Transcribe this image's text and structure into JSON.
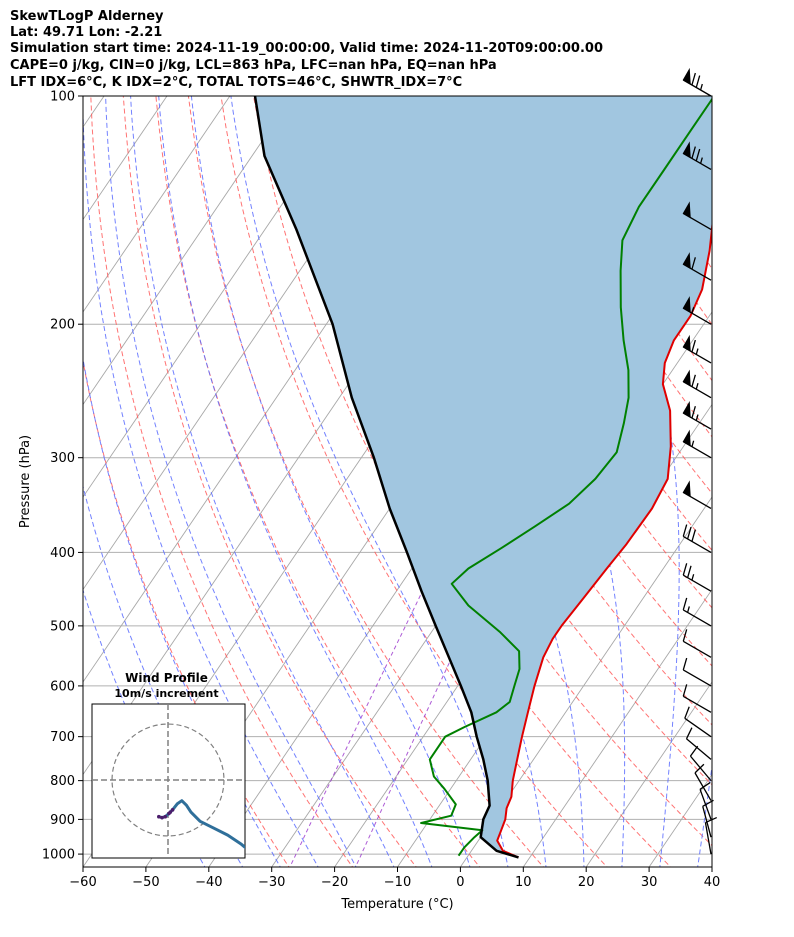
{
  "header": {
    "line1": "SkewTLogP Alderney",
    "line2": "Lat: 49.71   Lon: -2.21",
    "line3": "Simulation start time: 2024-11-19_00:00:00, Valid time: 2024-11-20T09:00:00.00",
    "line4": "CAPE=0 j/kg, CIN=0 j/kg, LCL=863 hPa, LFC=nan hPa, EQ=nan hPa",
    "line5": "LFT IDX=6°C, K IDX=2°C, TOTAL TOTS=46°C, SHWTR_IDX=7°C"
  },
  "chart_data": [
    {
      "type": "line",
      "kind": "skew-t log-p diagram",
      "xlabel": "Temperature (°C)",
      "ylabel": "Pressure (hPa)",
      "xlim": [
        -60,
        40
      ],
      "ylim": [
        1040,
        100
      ],
      "y_scale": "log",
      "x_ticks": [
        -60,
        -50,
        -40,
        -30,
        -20,
        -10,
        0,
        10,
        20,
        30,
        40
      ],
      "y_ticks": [
        100,
        200,
        300,
        400,
        500,
        600,
        700,
        800,
        900,
        1000
      ],
      "grid": true,
      "series": [
        {
          "role": "temperature",
          "color": "#e00000",
          "points": [
            [
              1010,
              8.2
            ],
            [
              990,
              5
            ],
            [
              960,
              3
            ],
            [
              930,
              2.5
            ],
            [
              900,
              2
            ],
            [
              870,
              1
            ],
            [
              840,
              0.5
            ],
            [
              800,
              -1
            ],
            [
              750,
              -2.6
            ],
            [
              700,
              -4.3
            ],
            [
              650,
              -6
            ],
            [
              600,
              -7.8
            ],
            [
              550,
              -9.5
            ],
            [
              520,
              -10
            ],
            [
              500,
              -10
            ],
            [
              460,
              -9.5
            ],
            [
              420,
              -9
            ],
            [
              390,
              -8.5
            ],
            [
              350,
              -8.3
            ],
            [
              320,
              -9
            ],
            [
              290,
              -12
            ],
            [
              260,
              -16
            ],
            [
              240,
              -20
            ],
            [
              225,
              -22
            ],
            [
              210,
              -23
            ],
            [
              195,
              -23
            ],
            [
              180,
              -24
            ],
            [
              160,
              -27
            ],
            [
              140,
              -31
            ],
            [
              125,
              -34
            ],
            [
              110,
              -37
            ],
            [
              100,
              -39
            ]
          ]
        },
        {
          "role": "dewpoint",
          "color": "#008000",
          "points": [
            [
              1005,
              -1.5
            ],
            [
              980,
              -1.5
            ],
            [
              950,
              -1
            ],
            [
              930,
              -0.5
            ],
            [
              910,
              -11
            ],
            [
              890,
              -7
            ],
            [
              860,
              -7.5
            ],
            [
              820,
              -11
            ],
            [
              790,
              -14
            ],
            [
              750,
              -16.5
            ],
            [
              700,
              -16.5
            ],
            [
              680,
              -14.5
            ],
            [
              650,
              -11
            ],
            [
              630,
              -10
            ],
            [
              600,
              -11
            ],
            [
              570,
              -12
            ],
            [
              540,
              -14
            ],
            [
              510,
              -19
            ],
            [
              470,
              -27
            ],
            [
              440,
              -32
            ],
            [
              420,
              -31
            ],
            [
              395,
              -28
            ],
            [
              370,
              -25
            ],
            [
              345,
              -22
            ],
            [
              320,
              -20.5
            ],
            [
              295,
              -20
            ],
            [
              270,
              -22
            ],
            [
              250,
              -24
            ],
            [
              230,
              -27
            ],
            [
              210,
              -31
            ],
            [
              190,
              -35
            ],
            [
              170,
              -39
            ],
            [
              155,
              -42
            ],
            [
              140,
              -43
            ],
            [
              125,
              -43
            ],
            [
              112,
              -43
            ],
            [
              100,
              -43
            ]
          ]
        },
        {
          "role": "parcel profile",
          "color": "#000000",
          "points": [
            [
              1010,
              8.2
            ],
            [
              990,
              4
            ],
            [
              950,
              0
            ],
            [
              900,
              -1.5
            ],
            [
              863,
              -2
            ],
            [
              800,
              -5
            ],
            [
              750,
              -8
            ],
            [
              700,
              -11.5
            ],
            [
              650,
              -15
            ],
            [
              600,
              -19.5
            ],
            [
              550,
              -24.5
            ],
            [
              500,
              -30
            ],
            [
              450,
              -36
            ],
            [
              400,
              -42.5
            ],
            [
              350,
              -50
            ],
            [
              300,
              -58
            ],
            [
              250,
              -68
            ],
            [
              200,
              -79
            ],
            [
              150,
              -95
            ],
            [
              120,
              -108
            ],
            [
              100,
              -116
            ]
          ]
        }
      ],
      "wind_barbs": [
        {
          "p": 100,
          "spd": 75,
          "dir": 300
        },
        {
          "p": 125,
          "spd": 75,
          "dir": 300
        },
        {
          "p": 150,
          "spd": 50,
          "dir": 300
        },
        {
          "p": 175,
          "spd": 60,
          "dir": 300
        },
        {
          "p": 200,
          "spd": 55,
          "dir": 300
        },
        {
          "p": 225,
          "spd": 65,
          "dir": 300
        },
        {
          "p": 250,
          "spd": 65,
          "dir": 300
        },
        {
          "p": 275,
          "spd": 65,
          "dir": 300
        },
        {
          "p": 300,
          "spd": 55,
          "dir": 300
        },
        {
          "p": 350,
          "spd": 50,
          "dir": 300
        },
        {
          "p": 400,
          "spd": 30,
          "dir": 300
        },
        {
          "p": 450,
          "spd": 25,
          "dir": 300
        },
        {
          "p": 500,
          "spd": 15,
          "dir": 300
        },
        {
          "p": 550,
          "spd": 10,
          "dir": 300
        },
        {
          "p": 600,
          "spd": 10,
          "dir": 300
        },
        {
          "p": 650,
          "spd": 10,
          "dir": 300
        },
        {
          "p": 700,
          "spd": 10,
          "dir": 305
        },
        {
          "p": 750,
          "spd": 10,
          "dir": 310
        },
        {
          "p": 800,
          "spd": 10,
          "dir": 320
        },
        {
          "p": 850,
          "spd": 10,
          "dir": 330
        },
        {
          "p": 900,
          "spd": 10,
          "dir": 340
        },
        {
          "p": 950,
          "spd": 10,
          "dir": 345
        },
        {
          "p": 1000,
          "spd": 10,
          "dir": 350
        }
      ]
    },
    {
      "type": "scatter",
      "kind": "hodograph",
      "title": "Wind Profile",
      "subtitle": "10m/s increment",
      "rings": [
        10,
        20,
        30
      ],
      "xlim": [
        -35,
        35
      ],
      "ylim": [
        -35,
        35
      ],
      "track_color": "#2f6f9a",
      "points": [
        [
          -2,
          -8
        ],
        [
          -1.3,
          -8.2
        ],
        [
          -0.6,
          -8
        ],
        [
          0.2,
          -7.3
        ],
        [
          0.5,
          -7
        ],
        [
          1,
          -6.5
        ],
        [
          2,
          -5.2
        ],
        [
          3,
          -4.5
        ],
        [
          4,
          -5.5
        ],
        [
          5,
          -7
        ],
        [
          7,
          -9
        ],
        [
          10,
          -10.5
        ],
        [
          13,
          -12
        ],
        [
          16,
          -14
        ],
        [
          19,
          -16.5
        ],
        [
          23,
          -20
        ],
        [
          27,
          -23
        ],
        [
          35,
          -28
        ]
      ]
    }
  ]
}
